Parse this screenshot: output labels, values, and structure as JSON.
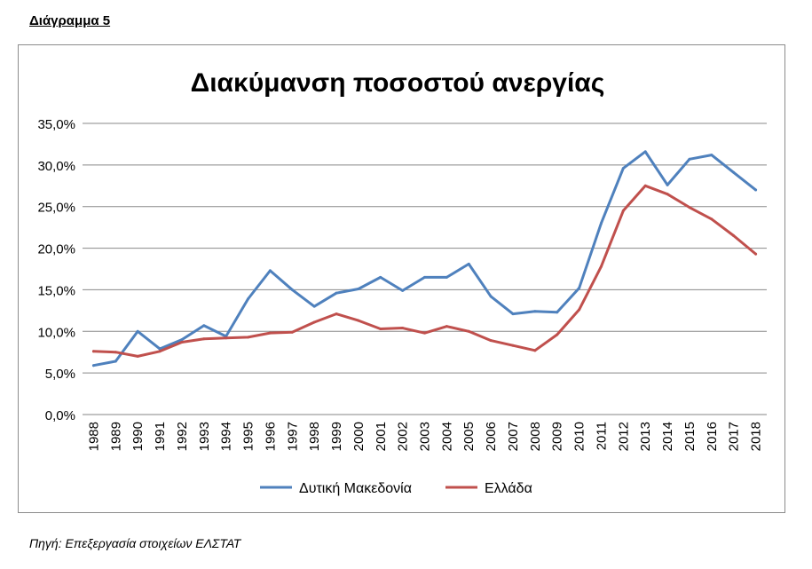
{
  "heading": "Διάγραμμα 5",
  "source_note": "Πηγή: Επεξεργασία στοιχείων ΕΛΣΤΑΤ",
  "chart_data": {
    "type": "line",
    "title": "Διακύμανση ποσοστού ανεργίας",
    "xlabel": "",
    "ylabel": "",
    "ylim": [
      0,
      35
    ],
    "ytick_values": [
      0,
      5,
      10,
      15,
      20,
      25,
      30,
      35
    ],
    "ytick_labels": [
      "0,0%",
      "5,0%",
      "10,0%",
      "15,0%",
      "20,0%",
      "25,0%",
      "30,0%",
      "35,0%"
    ],
    "grid": true,
    "legend_position": "bottom",
    "categories": [
      "1988",
      "1989",
      "1990",
      "1991",
      "1992",
      "1993",
      "1994",
      "1995",
      "1996",
      "1997",
      "1998",
      "1999",
      "2000",
      "2001",
      "2002",
      "2003",
      "2004",
      "2005",
      "2006",
      "2007",
      "2008",
      "2009",
      "2010",
      "2011",
      "2012",
      "2013",
      "2014",
      "2015",
      "2016",
      "2017",
      "2018"
    ],
    "series": [
      {
        "name": "Δυτική Μακεδονία",
        "color": "#4f81bd",
        "values": [
          5.9,
          6.4,
          10.0,
          7.9,
          9.0,
          10.7,
          9.4,
          13.9,
          17.3,
          15.0,
          13.0,
          14.6,
          15.1,
          16.5,
          14.9,
          16.5,
          16.5,
          18.1,
          14.2,
          12.1,
          12.4,
          12.3,
          15.2,
          23.0,
          29.6,
          31.6,
          27.6,
          30.7,
          31.2,
          29.1,
          27.0
        ]
      },
      {
        "name": "Ελλάδα",
        "color": "#c0504d",
        "values": [
          7.6,
          7.5,
          7.0,
          7.6,
          8.7,
          9.1,
          9.2,
          9.3,
          9.8,
          9.9,
          11.1,
          12.1,
          11.3,
          10.3,
          10.4,
          9.8,
          10.6,
          10.0,
          8.9,
          8.3,
          7.7,
          9.6,
          12.6,
          17.8,
          24.5,
          27.5,
          26.5,
          24.9,
          23.5,
          21.5,
          19.3
        ]
      }
    ]
  }
}
